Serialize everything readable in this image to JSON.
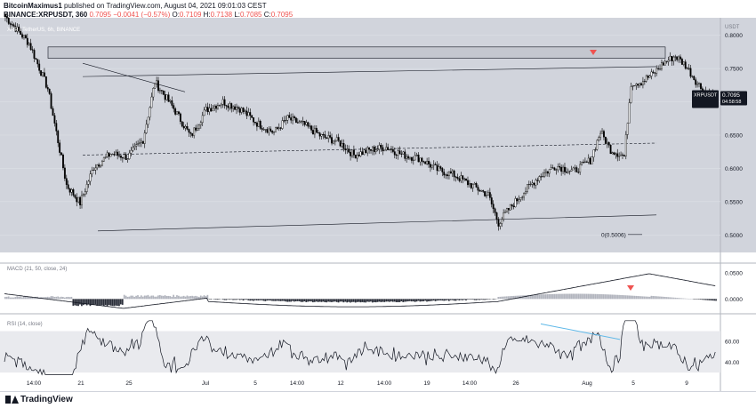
{
  "header": {
    "author": "BitcoinMaximus1",
    "published": "published on TradingView.com, August 04, 2021 09:01:03 CEST",
    "symbol_line": "BINANCE:XRPUSDT, 360",
    "ohlc": {
      "last": "0.7095",
      "change": "−0.0041 (−0.57%)",
      "o_label": "O:",
      "o": "0.7109",
      "h_label": "H:",
      "h": "0.7138",
      "l_label": "L:",
      "l": "0.7085",
      "c_label": "C:",
      "c": "0.7095"
    }
  },
  "colors": {
    "background": "#d1d4dc",
    "panel": "#ffffff",
    "grid": "#dde0e6",
    "candle": "#000000",
    "resistance_box": "#bfc2c9",
    "signal_marker": "#ef5350",
    "rsi_divergence": "#5eb8e8"
  },
  "footer": {
    "brand": "TradingView"
  },
  "chart_data": [
    {
      "panel": "price",
      "type": "candlestick",
      "legend": "XRP / TetherUS, 6h, BINANCE",
      "currency": "USDT",
      "ylim": [
        0.475,
        0.825
      ],
      "ytick_labels": [
        "0.8000",
        "0.7500",
        "0.7000",
        "0.6500",
        "0.6000",
        "0.5500",
        "0.5000"
      ],
      "last_price_label": {
        "symbol": "XRPUSDT",
        "price": "0.7095",
        "countdown": "04:58:58"
      },
      "annotation": "0(0.5006)",
      "close_path": [
        [
          0,
          0.828
        ],
        [
          14,
          0.788
        ],
        [
          25,
          0.72
        ],
        [
          36,
          0.575
        ],
        [
          44,
          0.548
        ],
        [
          52,
          0.602
        ],
        [
          62,
          0.622
        ],
        [
          72,
          0.617
        ],
        [
          81,
          0.643
        ],
        [
          88,
          0.73
        ],
        [
          99,
          0.69
        ],
        [
          109,
          0.648
        ],
        [
          118,
          0.688
        ],
        [
          128,
          0.7
        ],
        [
          138,
          0.69
        ],
        [
          148,
          0.668
        ],
        [
          158,
          0.654
        ],
        [
          166,
          0.675
        ],
        [
          176,
          0.665
        ],
        [
          186,
          0.648
        ],
        [
          196,
          0.64
        ],
        [
          205,
          0.62
        ],
        [
          215,
          0.628
        ],
        [
          224,
          0.632
        ],
        [
          234,
          0.62
        ],
        [
          244,
          0.615
        ],
        [
          254,
          0.598
        ],
        [
          264,
          0.59
        ],
        [
          274,
          0.575
        ],
        [
          284,
          0.56
        ],
        [
          290,
          0.518
        ],
        [
          295,
          0.535
        ],
        [
          304,
          0.562
        ],
        [
          314,
          0.588
        ],
        [
          324,
          0.604
        ],
        [
          334,
          0.595
        ],
        [
          344,
          0.612
        ],
        [
          350,
          0.655
        ],
        [
          356,
          0.628
        ],
        [
          364,
          0.618
        ],
        [
          368,
          0.728
        ],
        [
          374,
          0.73
        ],
        [
          381,
          0.742
        ],
        [
          387,
          0.758
        ],
        [
          394,
          0.769
        ],
        [
          400,
          0.755
        ],
        [
          407,
          0.728
        ],
        [
          412,
          0.713
        ],
        [
          418,
          0.7095
        ]
      ],
      "shapes": {
        "resistance_zone": [
          0.7655,
          0.7825
        ],
        "channel_upper": [
          [
            0.758,
            0.715
          ],
          [
            0.738,
            0.753
          ]
        ],
        "channel_middle": [
          [
            0.62,
            0.638
          ]
        ],
        "channel_lower": [
          [
            0.506,
            0.53
          ]
        ]
      }
    },
    {
      "panel": "macd",
      "type": "histogram",
      "legend": "MACD (21, 50, close, 24)",
      "ytick_labels": [
        "0.0500",
        "0.0000"
      ],
      "ylim": [
        -0.025,
        0.062
      ]
    },
    {
      "panel": "rsi",
      "type": "line",
      "legend": "RSI (14, close)",
      "ytick_labels": [
        "60.00",
        "40.00"
      ],
      "ylim": [
        25,
        85
      ],
      "upper_band": 70,
      "lower_band": 30
    },
    {
      "panel": "time_axis",
      "tick_labels": [
        "14:00",
        "21",
        "25",
        "Jul",
        "5",
        "14:00",
        "12",
        "14:00",
        "19",
        "14:00",
        "26",
        "Aug",
        "5",
        "9"
      ]
    }
  ]
}
